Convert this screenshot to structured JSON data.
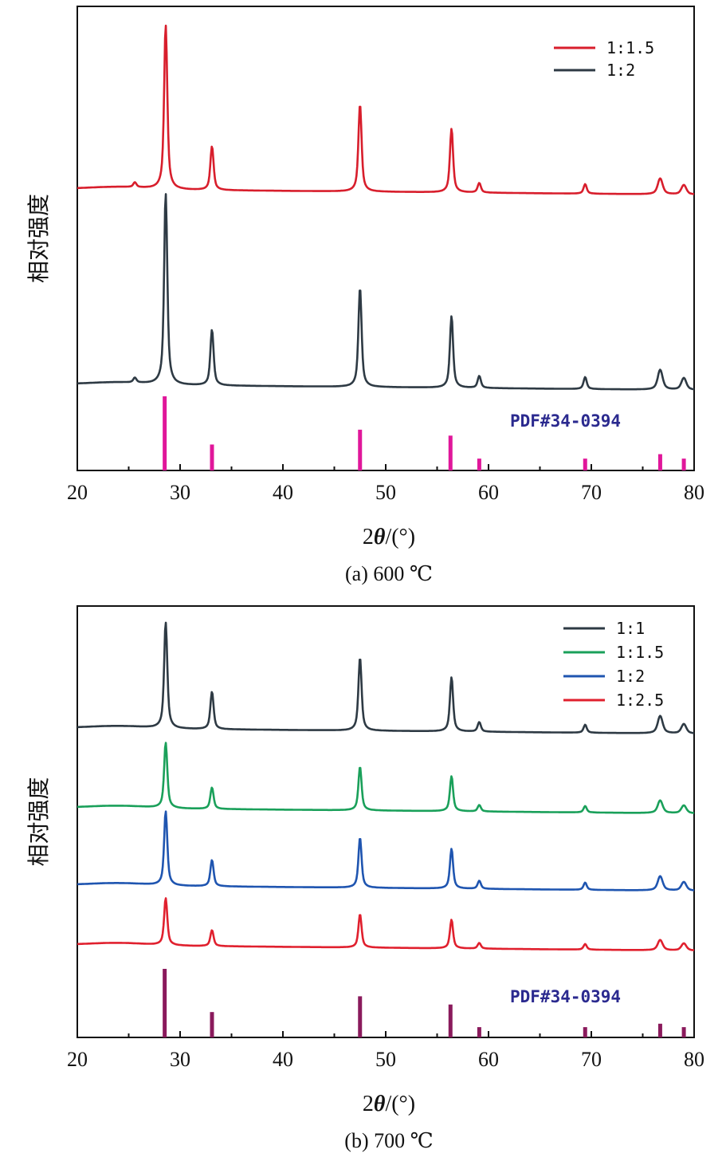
{
  "chart_data": [
    {
      "id": "a",
      "type": "line",
      "caption": "(a) 600 ℃",
      "xlabel_prefix": "2",
      "xlabel_theta": "θ",
      "xlabel_suffix": "/(°)",
      "ylabel": "相对强度",
      "xlim": [
        20,
        80
      ],
      "xticks": [
        "20",
        "30",
        "40",
        "50",
        "60",
        "70",
        "80"
      ],
      "pdf_label": "PDF#34-0394",
      "pdf_color": "#2b2a8f",
      "stick_color": "#e0179a",
      "reference_peaks": [
        {
          "x": 28.5,
          "h": 1.0
        },
        {
          "x": 33.1,
          "h": 0.35
        },
        {
          "x": 47.5,
          "h": 0.55
        },
        {
          "x": 56.3,
          "h": 0.47
        },
        {
          "x": 59.1,
          "h": 0.16
        },
        {
          "x": 69.4,
          "h": 0.16
        },
        {
          "x": 76.7,
          "h": 0.22
        },
        {
          "x": 79.0,
          "h": 0.16
        }
      ],
      "series": [
        {
          "name": "1:1.5",
          "color": "#d81e2c",
          "baseline": 237,
          "peaks": [
            [
              25.6,
              6
            ],
            [
              28.6,
              206
            ],
            [
              33.1,
              55
            ],
            [
              47.5,
              110
            ],
            [
              56.4,
              80
            ],
            [
              59.1,
              12
            ],
            [
              69.4,
              12
            ],
            [
              76.7,
              20
            ],
            [
              79.0,
              12
            ]
          ]
        },
        {
          "name": "1:2",
          "color": "#2e3a44",
          "baseline": 482,
          "peaks": [
            [
              25.6,
              6
            ],
            [
              28.6,
              240
            ],
            [
              33.1,
              70
            ],
            [
              47.5,
              125
            ],
            [
              56.4,
              90
            ],
            [
              59.1,
              15
            ],
            [
              69.4,
              15
            ],
            [
              76.7,
              25
            ],
            [
              79.0,
              15
            ]
          ]
        }
      ]
    },
    {
      "id": "b",
      "type": "line",
      "caption": "(b) 700 ℃",
      "xlabel_prefix": "2",
      "xlabel_theta": "θ",
      "xlabel_suffix": "/(°)",
      "ylabel": "相对强度",
      "xlim": [
        20,
        80
      ],
      "xticks": [
        "20",
        "30",
        "40",
        "50",
        "60",
        "70",
        "80"
      ],
      "pdf_label": "PDF#34-0394",
      "pdf_color": "#2b2a8f",
      "stick_color": "#8a1a5c",
      "reference_peaks": [
        {
          "x": 28.5,
          "h": 1.0
        },
        {
          "x": 33.1,
          "h": 0.37
        },
        {
          "x": 47.5,
          "h": 0.6
        },
        {
          "x": 56.3,
          "h": 0.48
        },
        {
          "x": 59.1,
          "h": 0.15
        },
        {
          "x": 69.4,
          "h": 0.15
        },
        {
          "x": 76.7,
          "h": 0.2
        },
        {
          "x": 79.0,
          "h": 0.15
        }
      ],
      "series": [
        {
          "name": "1:1",
          "color": "#2e3a44",
          "baseline": 180,
          "peaks": [
            [
              28.6,
              133
            ],
            [
              33.1,
              47
            ],
            [
              47.5,
              92
            ],
            [
              56.4,
              68
            ],
            [
              59.1,
              12
            ],
            [
              69.4,
              10
            ],
            [
              76.7,
              22
            ],
            [
              79.0,
              12
            ]
          ]
        },
        {
          "name": "1:1.5",
          "color": "#1aa05a",
          "baseline": 280,
          "peaks": [
            [
              28.6,
              82
            ],
            [
              33.1,
              27
            ],
            [
              47.5,
              55
            ],
            [
              56.4,
              44
            ],
            [
              59.1,
              8
            ],
            [
              69.4,
              8
            ],
            [
              76.7,
              16
            ],
            [
              79.0,
              10
            ]
          ]
        },
        {
          "name": "1:2",
          "color": "#1f55b0",
          "baseline": 377,
          "peaks": [
            [
              28.6,
              93
            ],
            [
              33.1,
              33
            ],
            [
              47.5,
              63
            ],
            [
              56.4,
              50
            ],
            [
              59.1,
              10
            ],
            [
              69.4,
              9
            ],
            [
              76.7,
              18
            ],
            [
              79.0,
              11
            ]
          ]
        },
        {
          "name": "1:2.5",
          "color": "#e0202e",
          "baseline": 452,
          "peaks": [
            [
              28.6,
              59
            ],
            [
              33.1,
              20
            ],
            [
              47.5,
              42
            ],
            [
              56.4,
              36
            ],
            [
              59.1,
              7
            ],
            [
              69.4,
              7
            ],
            [
              76.7,
              13
            ],
            [
              79.0,
              9
            ]
          ]
        }
      ]
    }
  ]
}
